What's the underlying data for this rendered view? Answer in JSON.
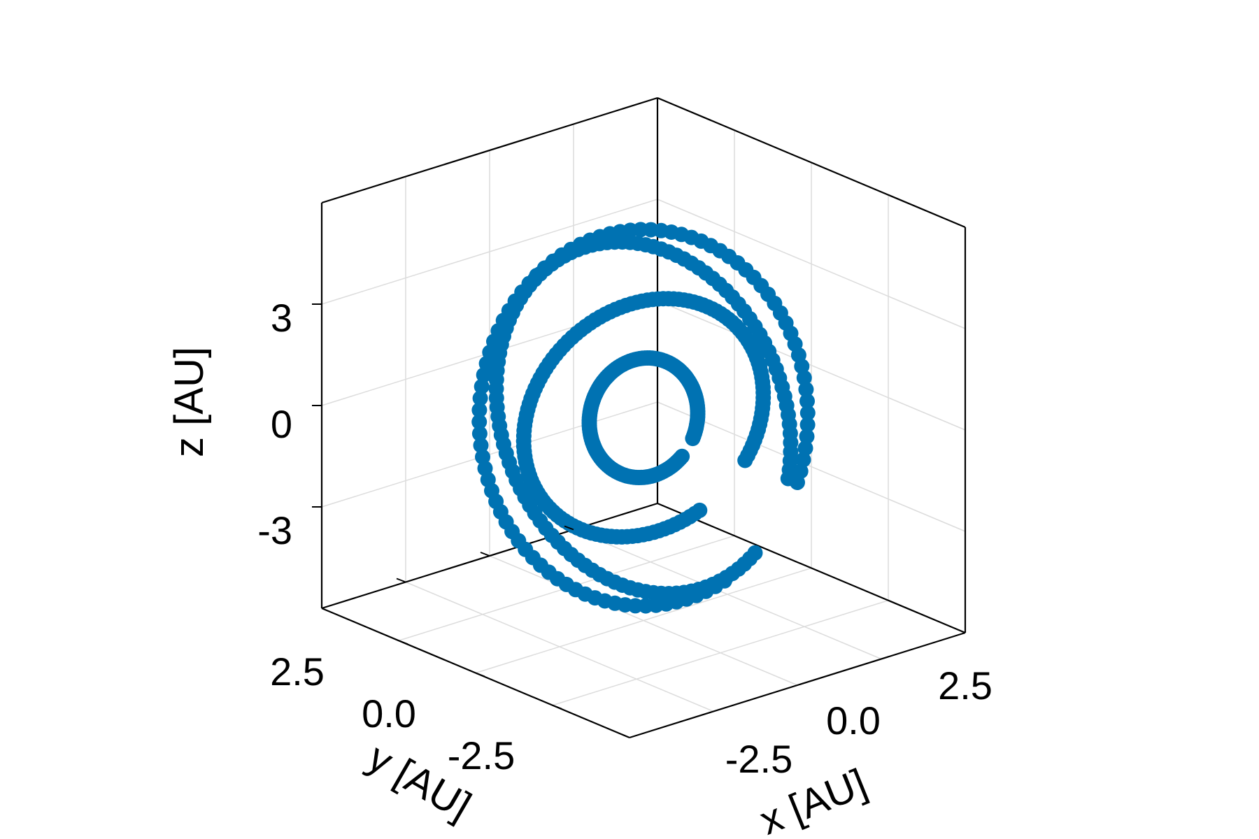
{
  "chart_data": {
    "type": "scatter",
    "title": "",
    "xlabel": "x [AU]",
    "ylabel": "y [AU]",
    "zlabel": "z [AU]",
    "xticks": [
      "-2.5",
      "0.0",
      "2.5"
    ],
    "yticks": [
      "2.5",
      "0.0",
      "-2.5"
    ],
    "zticks": [
      "3",
      "0",
      "-3"
    ],
    "xlim": [
      -5.0,
      5.0
    ],
    "ylim": [
      -5.0,
      5.0
    ],
    "zlim": [
      -6.0,
      6.0
    ],
    "grid": true,
    "marker_color": "#0072b2",
    "series": [
      {
        "orbit_radius": 5.0,
        "inclination_deg": 70,
        "point_count": 90,
        "arc_deg": [
          0,
          320
        ]
      },
      {
        "orbit_radius": 1.6,
        "inclination_deg": 65,
        "point_count": 130,
        "arc_deg": [
          0,
          340
        ]
      },
      {
        "orbit_radius": 3.3,
        "inclination_deg": 55,
        "point_count": 130,
        "arc_deg": [
          0,
          330
        ]
      },
      {
        "orbit_radius": 4.7,
        "inclination_deg": 80,
        "point_count": 110,
        "arc_deg": [
          0,
          330
        ]
      }
    ]
  }
}
